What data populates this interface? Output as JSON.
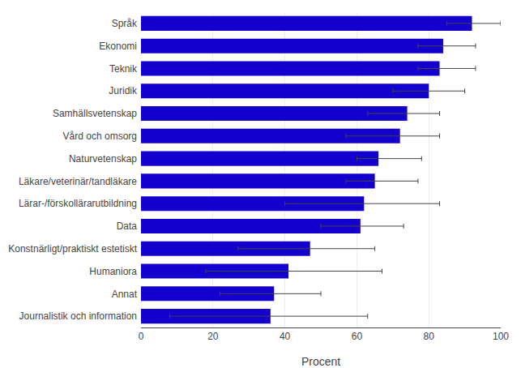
{
  "chart_data": {
    "type": "bar",
    "orientation": "horizontal",
    "categories": [
      "Journalistik och information",
      "Annat",
      "Humaniora",
      "Konstnärligt/praktiskt estetiskt",
      "Data",
      "Lärar-/förskollärarutbildning",
      "Läkare/veterinär/tandläkare",
      "Naturvetenskap",
      "Vård och omsorg",
      "Samhällsvetenskap",
      "Juridik",
      "Teknik",
      "Ekonomi",
      "Språk"
    ],
    "values": [
      36,
      37,
      41,
      47,
      61,
      62,
      65,
      66,
      72,
      74,
      80,
      83,
      84,
      92
    ],
    "error_low": [
      28,
      15,
      23,
      20,
      11,
      22,
      8,
      6,
      15,
      11,
      10,
      6,
      7,
      7
    ],
    "error_high": [
      27,
      13,
      26,
      18,
      12,
      21,
      12,
      12,
      11,
      9,
      10,
      10,
      9,
      8
    ],
    "color": "#1400cc",
    "xlabel": "Procent",
    "xlim": [
      0,
      100
    ],
    "xticks": [
      0,
      20,
      40,
      60,
      80,
      100
    ],
    "grid": true
  }
}
